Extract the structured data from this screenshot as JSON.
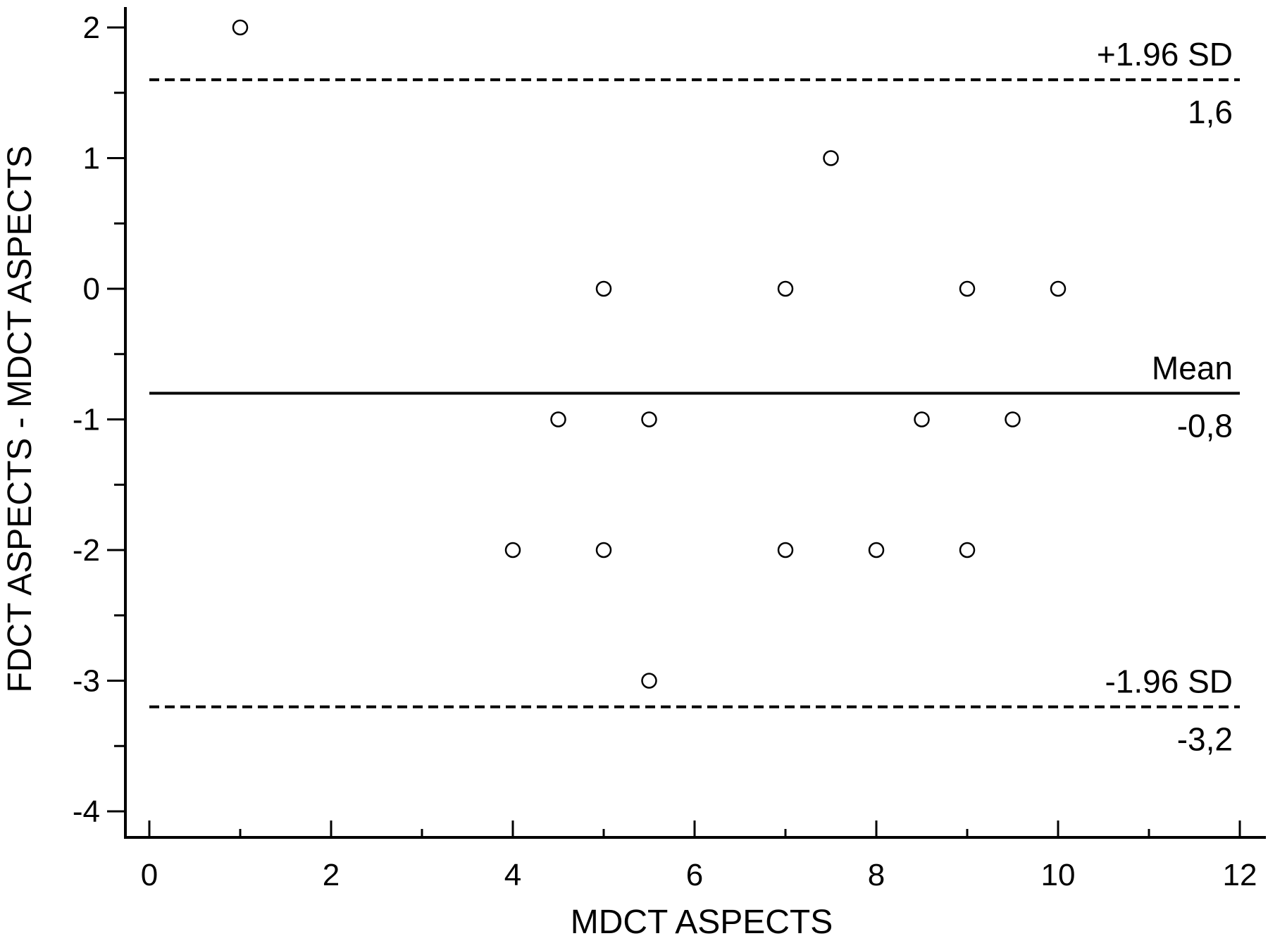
{
  "chart_data": {
    "type": "scatter",
    "title": "",
    "xlabel": "MDCT ASPECTS",
    "ylabel": "FDCT ASPECTS - MDCT ASPECTS",
    "xlim": [
      0,
      12
    ],
    "ylim": [
      -4,
      2
    ],
    "x_ticks": [
      0,
      2,
      4,
      6,
      8,
      10,
      12
    ],
    "y_ticks": [
      -4,
      -3,
      -2,
      -1,
      0,
      1,
      2
    ],
    "x_tick_labels": [
      "0",
      "2",
      "4",
      "6",
      "8",
      "10",
      "12"
    ],
    "y_tick_labels": [
      "-4",
      "-3",
      "-2",
      "-1",
      "0",
      "1",
      "2"
    ],
    "grid": false,
    "points": [
      {
        "x": 1,
        "y": 2
      },
      {
        "x": 7.5,
        "y": 1
      },
      {
        "x": 5,
        "y": 0
      },
      {
        "x": 7,
        "y": 0
      },
      {
        "x": 9,
        "y": 0
      },
      {
        "x": 10,
        "y": 0
      },
      {
        "x": 4.5,
        "y": -1
      },
      {
        "x": 5.5,
        "y": -1
      },
      {
        "x": 8.5,
        "y": -1
      },
      {
        "x": 9.5,
        "y": -1
      },
      {
        "x": 4,
        "y": -2
      },
      {
        "x": 5,
        "y": -2
      },
      {
        "x": 7,
        "y": -2
      },
      {
        "x": 8,
        "y": -2
      },
      {
        "x": 9,
        "y": -2
      },
      {
        "x": 5.5,
        "y": -3
      }
    ],
    "reference_lines": [
      {
        "name": "+1.96 SD",
        "value": 1.6,
        "value_label": "1,6",
        "style": "dashed"
      },
      {
        "name": "Mean",
        "value": -0.8,
        "value_label": "-0,8",
        "style": "solid"
      },
      {
        "name": "-1.96 SD",
        "value": -3.2,
        "value_label": "-3,2",
        "style": "dashed"
      }
    ]
  }
}
